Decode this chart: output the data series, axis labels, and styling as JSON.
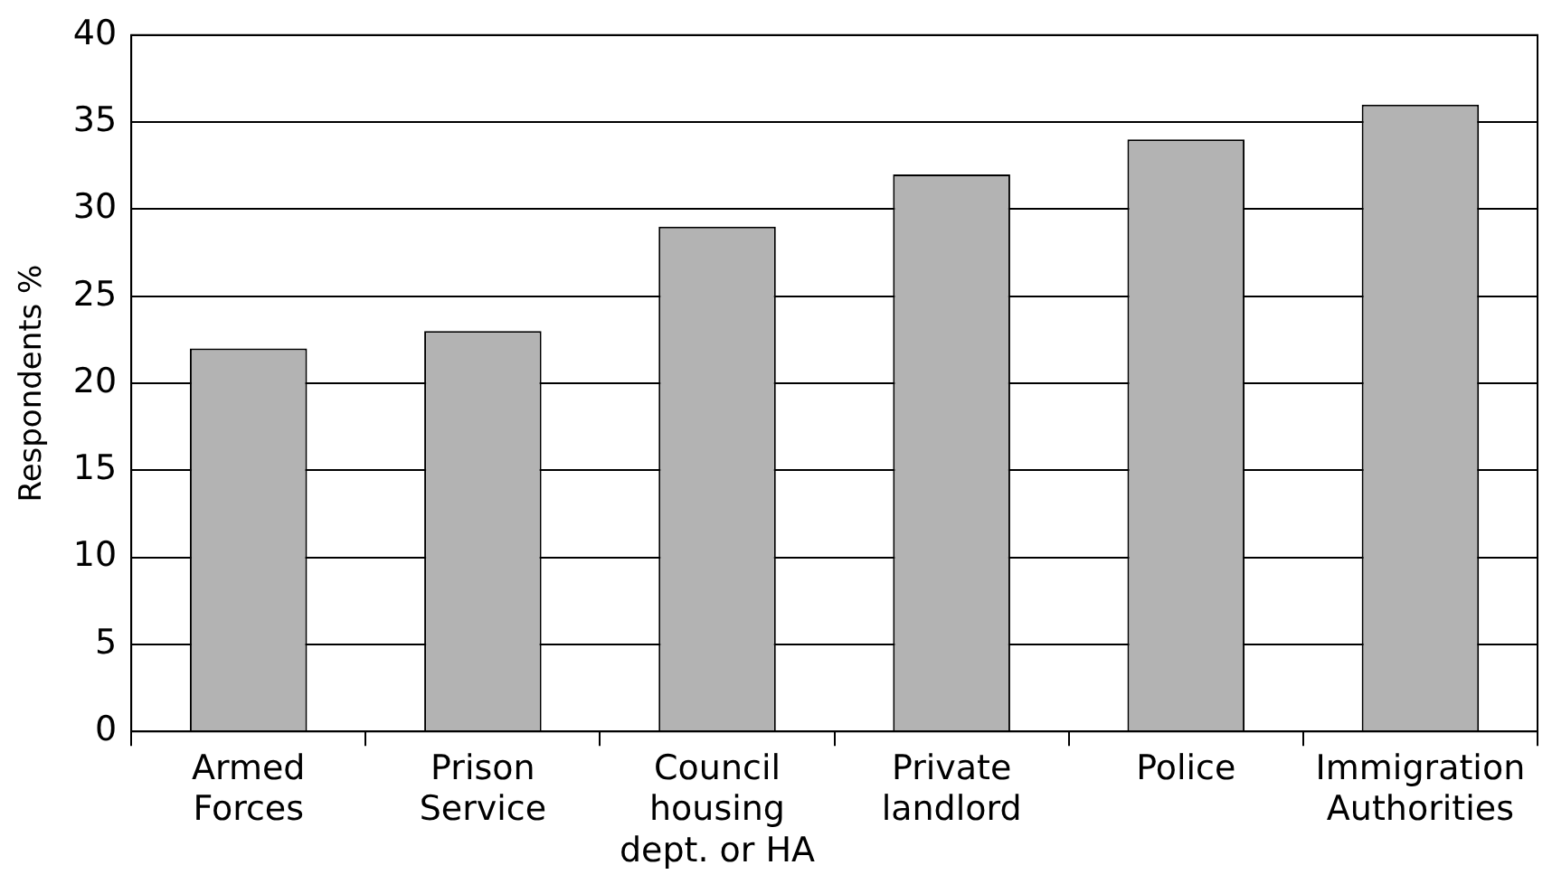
{
  "chart_data": {
    "type": "bar",
    "ylabel": "Respondents %",
    "categories": [
      "Armed Forces",
      "Prison Service",
      "Council housing dept. or HA",
      "Private landlord",
      "Police",
      "Immigration Authorities"
    ],
    "values": [
      22,
      23,
      29,
      32,
      34,
      36
    ],
    "color": "#b3b3b3",
    "ylim": [
      0,
      40
    ],
    "yticks": [
      0,
      5,
      10,
      15,
      20,
      25,
      30,
      35,
      40
    ],
    "grid": "y",
    "legend": false
  }
}
